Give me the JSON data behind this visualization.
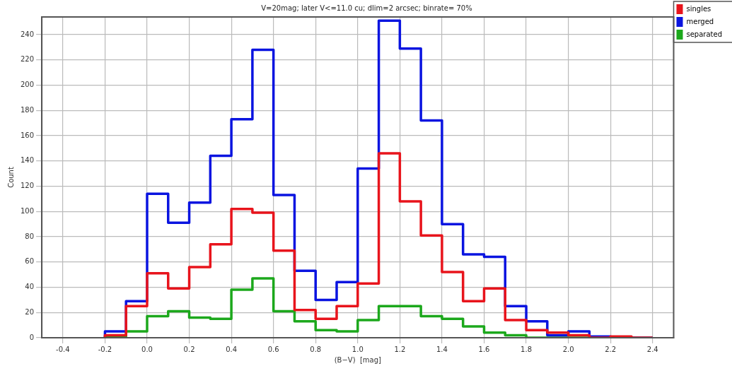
{
  "chart_data": {
    "type": "histogram",
    "title": "V=20mag; later V<=11.0 cu; dlim=2 arcsec; binrate= 70%",
    "xlabel": "(B−V)  [mag]",
    "ylabel": "Count",
    "bins": [
      -0.2,
      -0.1,
      0.0,
      0.1,
      0.2,
      0.3,
      0.4,
      0.5,
      0.6,
      0.7,
      0.8,
      0.9,
      1.0,
      1.1,
      1.2,
      1.3,
      1.4,
      1.5,
      1.6,
      1.7,
      1.8,
      1.9,
      2.0,
      2.1,
      2.2,
      2.3,
      2.4
    ],
    "series": [
      {
        "name": "singles",
        "color": "#e8141c",
        "values": [
          2,
          25,
          51,
          39,
          56,
          74,
          102,
          99,
          69,
          22,
          15,
          25,
          43,
          146,
          108,
          81,
          52,
          29,
          39,
          14,
          6,
          4,
          2,
          0,
          1,
          0
        ]
      },
      {
        "name": "merged",
        "color": "#0a14e0",
        "values": [
          5,
          29,
          114,
          91,
          107,
          144,
          173,
          228,
          113,
          53,
          30,
          44,
          134,
          251,
          229,
          172,
          90,
          66,
          64,
          25,
          13,
          2,
          5,
          1,
          0,
          0
        ]
      },
      {
        "name": "separated",
        "color": "#1ca81c",
        "values": [
          1,
          5,
          17,
          21,
          16,
          15,
          38,
          47,
          21,
          13,
          6,
          5,
          14,
          25,
          25,
          17,
          15,
          9,
          4,
          2,
          0,
          0,
          0,
          0,
          0,
          0
        ]
      }
    ],
    "xlim": [
      -0.5,
      2.5
    ],
    "ylim": [
      0,
      254
    ],
    "xticks": [
      -0.4,
      -0.2,
      {
        "value": 0,
        "label": "0.0"
      },
      0.2,
      0.4,
      0.6,
      0.8,
      {
        "value": 1,
        "label": "1.0"
      },
      1.2,
      1.4,
      1.6,
      1.8,
      {
        "value": 2,
        "label": "2.0"
      },
      2.2,
      2.4
    ],
    "yticks": [
      0,
      20,
      40,
      60,
      80,
      100,
      120,
      140,
      160,
      180,
      200,
      220,
      240
    ],
    "grid": true,
    "legend": "top right",
    "line_style": "solid",
    "marker": "none"
  }
}
